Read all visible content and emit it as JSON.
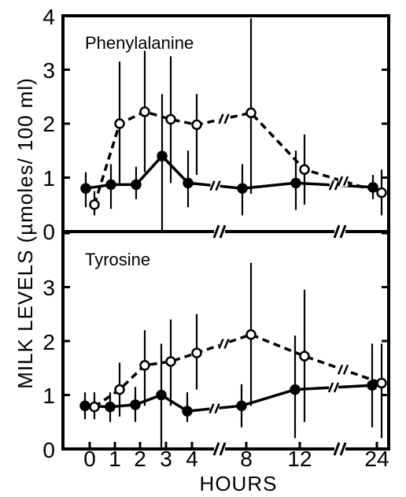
{
  "chart_data": [
    {
      "type": "line",
      "title": "Phenylalanine",
      "xlabel": "HOURS",
      "ylabel": "MILK LEVELS (µmoles/ 100 ml)",
      "x_ticks": [
        "0",
        "1",
        "2",
        "3",
        "4",
        "8",
        "12",
        "24"
      ],
      "y_ticks": [
        "0",
        "1",
        "2",
        "3",
        "4"
      ],
      "ylim": [
        0,
        4
      ],
      "axis_breaks": [
        "4-8",
        "12-24"
      ],
      "grid": false,
      "series": [
        {
          "marker": "filled-circle",
          "line_style": "solid",
          "x": [
            0,
            1,
            2,
            3,
            4,
            8,
            12,
            24
          ],
          "y": [
            0.8,
            0.87,
            0.87,
            1.4,
            0.9,
            0.8,
            0.9,
            0.82
          ],
          "err_low": [
            0.45,
            0.42,
            0.6,
            0.0,
            0.45,
            0.3,
            0.4,
            0.6
          ],
          "err_high": [
            1.1,
            1.25,
            1.2,
            2.55,
            1.5,
            1.25,
            1.5,
            1.05
          ]
        },
        {
          "marker": "open-circle",
          "line_style": "dashed",
          "x": [
            0,
            1,
            2,
            3,
            4,
            8,
            12,
            24
          ],
          "y": [
            0.5,
            2.0,
            2.22,
            2.08,
            1.98,
            2.2,
            1.15,
            0.72
          ],
          "err_low": [
            0.3,
            0.9,
            1.1,
            0.9,
            1.05,
            0.7,
            0.5,
            0.3
          ],
          "err_high": [
            0.75,
            3.15,
            3.35,
            3.25,
            2.55,
            3.95,
            1.8,
            1.15
          ]
        }
      ]
    },
    {
      "type": "line",
      "title": "Tyrosine",
      "xlabel": "HOURS",
      "ylabel": "MILK LEVELS (µmoles/ 100 ml)",
      "x_ticks": [
        "0",
        "1",
        "2",
        "3",
        "4",
        "8",
        "12",
        "24"
      ],
      "y_ticks": [
        "0",
        "1",
        "2",
        "3"
      ],
      "ylim": [
        0,
        4
      ],
      "axis_breaks": [
        "4-8",
        "12-24"
      ],
      "grid": false,
      "series": [
        {
          "marker": "filled-circle",
          "line_style": "solid",
          "x": [
            0,
            1,
            2,
            3,
            4,
            8,
            12,
            24
          ],
          "y": [
            0.8,
            0.78,
            0.82,
            1.0,
            0.7,
            0.8,
            1.1,
            1.18
          ],
          "err_low": [
            0.55,
            0.5,
            0.5,
            0.0,
            0.5,
            0.4,
            0.2,
            0.4
          ],
          "err_high": [
            1.05,
            1.05,
            1.15,
            1.95,
            1.05,
            1.2,
            2.1,
            1.95
          ]
        },
        {
          "marker": "open-circle",
          "line_style": "dashed",
          "x": [
            0,
            1,
            2,
            3,
            4,
            8,
            12,
            24
          ],
          "y": [
            0.78,
            1.1,
            1.55,
            1.62,
            1.78,
            2.12,
            1.72,
            1.22
          ],
          "err_low": [
            0.55,
            0.6,
            0.8,
            0.8,
            1.1,
            0.8,
            0.5,
            0.2
          ],
          "err_high": [
            1.05,
            1.6,
            2.2,
            2.4,
            2.5,
            3.45,
            2.95,
            1.95
          ]
        }
      ]
    }
  ]
}
